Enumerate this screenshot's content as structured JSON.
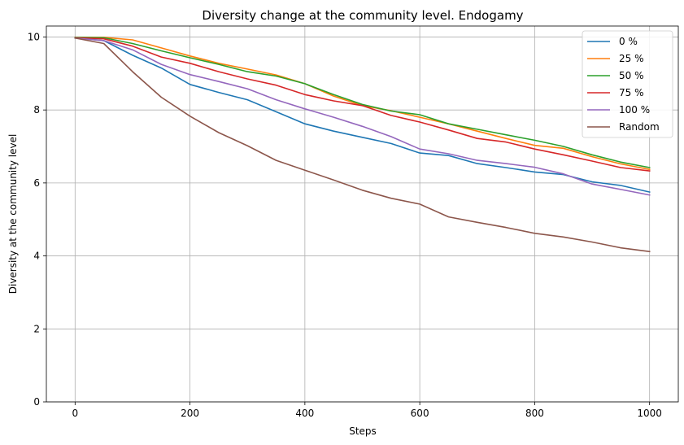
{
  "chart_data": {
    "type": "line",
    "title": "Diversity change at the community level. Endogamy",
    "xlabel": "Steps",
    "ylabel": "Diversity at the community level",
    "xlim": [
      -50,
      1050
    ],
    "ylim": [
      0,
      10.3
    ],
    "xticks": [
      0,
      200,
      400,
      600,
      800,
      1000
    ],
    "yticks": [
      0,
      2,
      4,
      6,
      8,
      10
    ],
    "grid": true,
    "legend_position": "top-right",
    "x": [
      0,
      50,
      100,
      150,
      200,
      250,
      300,
      350,
      400,
      450,
      500,
      550,
      600,
      650,
      700,
      750,
      800,
      850,
      900,
      950,
      1000
    ],
    "series": [
      {
        "name": "0 %",
        "color": "#1f77b4",
        "values": [
          9.98,
          9.9,
          9.5,
          9.15,
          8.7,
          8.48,
          8.28,
          7.95,
          7.62,
          7.42,
          7.25,
          7.08,
          6.82,
          6.75,
          6.53,
          6.42,
          6.3,
          6.23,
          6.03,
          5.93,
          5.75
        ]
      },
      {
        "name": "25 %",
        "color": "#ff7f0e",
        "values": [
          9.99,
          9.99,
          9.92,
          9.7,
          9.48,
          9.28,
          9.12,
          8.96,
          8.72,
          8.38,
          8.12,
          7.98,
          7.8,
          7.62,
          7.42,
          7.22,
          7.03,
          6.95,
          6.72,
          6.52,
          6.37
        ]
      },
      {
        "name": "50 %",
        "color": "#2ca02c",
        "values": [
          9.99,
          9.98,
          9.82,
          9.62,
          9.43,
          9.25,
          9.05,
          8.93,
          8.72,
          8.42,
          8.15,
          7.97,
          7.87,
          7.62,
          7.47,
          7.32,
          7.17,
          7.0,
          6.77,
          6.57,
          6.42
        ]
      },
      {
        "name": "75 %",
        "color": "#d62728",
        "values": [
          9.98,
          9.95,
          9.75,
          9.45,
          9.28,
          9.05,
          8.85,
          8.68,
          8.42,
          8.25,
          8.12,
          7.85,
          7.67,
          7.45,
          7.22,
          7.12,
          6.93,
          6.77,
          6.6,
          6.42,
          6.33
        ]
      },
      {
        "name": "100 %",
        "color": "#9467bd",
        "values": [
          9.97,
          9.9,
          9.65,
          9.25,
          8.97,
          8.78,
          8.58,
          8.28,
          8.03,
          7.8,
          7.55,
          7.27,
          6.93,
          6.8,
          6.62,
          6.53,
          6.43,
          6.25,
          5.97,
          5.82,
          5.67
        ]
      },
      {
        "name": "Random",
        "color": "#8c564b",
        "values": [
          9.97,
          9.82,
          9.05,
          8.35,
          7.83,
          7.38,
          7.02,
          6.62,
          6.35,
          6.08,
          5.8,
          5.58,
          5.42,
          5.07,
          4.92,
          4.78,
          4.62,
          4.52,
          4.38,
          4.22,
          4.12
        ]
      }
    ]
  }
}
